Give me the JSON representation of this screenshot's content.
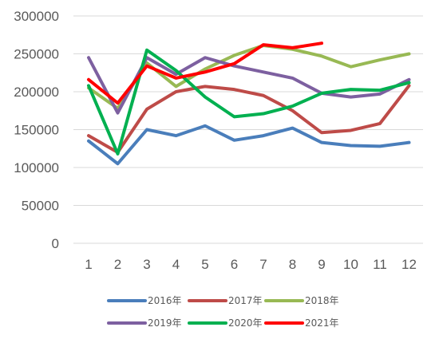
{
  "chart_data": {
    "type": "line",
    "title": "",
    "xlabel": "",
    "ylabel": "",
    "x": [
      "1",
      "2",
      "3",
      "4",
      "5",
      "6",
      "7",
      "8",
      "9",
      "10",
      "11",
      "12"
    ],
    "ylim": [
      0,
      300000
    ],
    "yticks": [
      "0",
      "50000",
      "100000",
      "150000",
      "200000",
      "250000",
      "300000"
    ],
    "grid": true,
    "legend_position": "bottom",
    "series": [
      {
        "name": "2016年",
        "color": "#4a7ebb",
        "values": [
          135000,
          105000,
          150000,
          142000,
          155000,
          136000,
          142000,
          152000,
          133000,
          129000,
          128000,
          133000
        ]
      },
      {
        "name": "2017年",
        "color": "#be4b48",
        "values": [
          142000,
          120000,
          177000,
          200000,
          207000,
          203000,
          195000,
          175000,
          146000,
          149000,
          158000,
          208000
        ]
      },
      {
        "name": "2018年",
        "color": "#98b954",
        "values": [
          205000,
          178000,
          238000,
          207000,
          230000,
          248000,
          261000,
          256000,
          247000,
          233000,
          242000,
          250000
        ]
      },
      {
        "name": "2019年",
        "color": "#7d60a0",
        "values": [
          245000,
          172000,
          245000,
          223000,
          245000,
          234000,
          226000,
          218000,
          198000,
          193000,
          197000,
          216000
        ]
      },
      {
        "name": "2020年",
        "color": "#00b050",
        "values": [
          208000,
          118000,
          255000,
          228000,
          193000,
          167000,
          171000,
          181000,
          198000,
          203000,
          202000,
          212000
        ]
      },
      {
        "name": "2021年",
        "color": "#ff0000",
        "values": [
          216000,
          185000,
          234000,
          218000,
          226000,
          237000,
          262000,
          258000,
          264000,
          null,
          null,
          null
        ]
      }
    ]
  }
}
